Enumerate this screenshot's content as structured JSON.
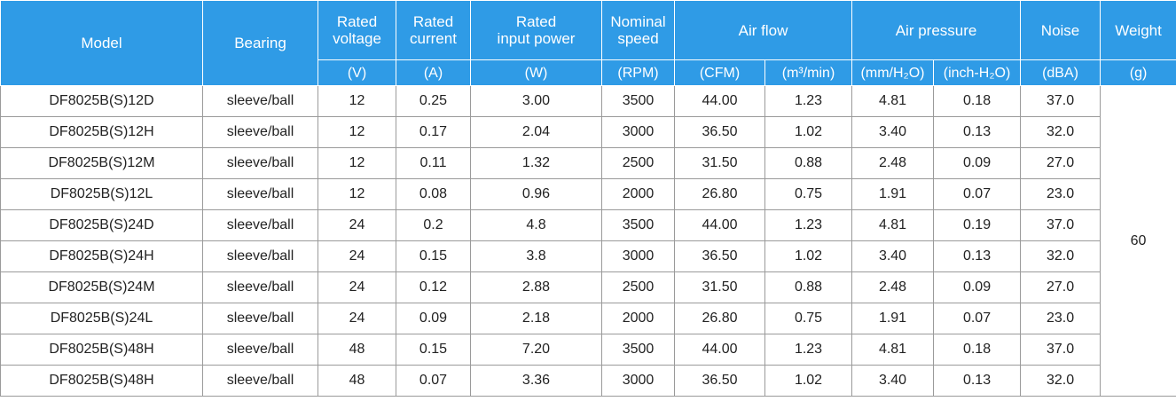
{
  "header": {
    "columns": [
      {
        "label": "Model",
        "rowspan": 2,
        "colspan": 1
      },
      {
        "label": "Bearing",
        "rowspan": 2,
        "colspan": 1
      },
      {
        "label": "Rated\nvoltage",
        "rowspan": 1,
        "colspan": 1
      },
      {
        "label": "Rated\ncurrent",
        "rowspan": 1,
        "colspan": 1
      },
      {
        "label": "Rated\ninput power",
        "rowspan": 1,
        "colspan": 1
      },
      {
        "label": "Nominal\nspeed",
        "rowspan": 1,
        "colspan": 1
      },
      {
        "label": "Air flow",
        "rowspan": 1,
        "colspan": 2
      },
      {
        "label": "Air pressure",
        "rowspan": 1,
        "colspan": 2
      },
      {
        "label": "Noise",
        "rowspan": 1,
        "colspan": 1
      },
      {
        "label": "Weight",
        "rowspan": 1,
        "colspan": 1
      }
    ],
    "units": [
      "(V)",
      "(A)",
      "(W)",
      "(RPM)",
      "(CFM)",
      "(m³/min)",
      "(mm/H₂O)",
      "(inch-H₂O)",
      "(dBA)",
      "(g)"
    ]
  },
  "table": {
    "rows": [
      [
        "DF8025B(S)12D",
        "sleeve/ball",
        "12",
        "0.25",
        "3.00",
        "3500",
        "44.00",
        "1.23",
        "4.81",
        "0.18",
        "37.0"
      ],
      [
        "DF8025B(S)12H",
        "sleeve/ball",
        "12",
        "0.17",
        "2.04",
        "3000",
        "36.50",
        "1.02",
        "3.40",
        "0.13",
        "32.0"
      ],
      [
        "DF8025B(S)12M",
        "sleeve/ball",
        "12",
        "0.11",
        "1.32",
        "2500",
        "31.50",
        "0.88",
        "2.48",
        "0.09",
        "27.0"
      ],
      [
        "DF8025B(S)12L",
        "sleeve/ball",
        "12",
        "0.08",
        "0.96",
        "2000",
        "26.80",
        "0.75",
        "1.91",
        "0.07",
        "23.0"
      ],
      [
        "DF8025B(S)24D",
        "sleeve/ball",
        "24",
        "0.2",
        "4.8",
        "3500",
        "44.00",
        "1.23",
        "4.81",
        "0.19",
        "37.0"
      ],
      [
        "DF8025B(S)24H",
        "sleeve/ball",
        "24",
        "0.15",
        "3.8",
        "3000",
        "36.50",
        "1.02",
        "3.40",
        "0.13",
        "32.0"
      ],
      [
        "DF8025B(S)24M",
        "sleeve/ball",
        "24",
        "0.12",
        "2.88",
        "2500",
        "31.50",
        "0.88",
        "2.48",
        "0.09",
        "27.0"
      ],
      [
        "DF8025B(S)24L",
        "sleeve/ball",
        "24",
        "0.09",
        "2.18",
        "2000",
        "26.80",
        "0.75",
        "1.91",
        "0.07",
        "23.0"
      ],
      [
        "DF8025B(S)48H",
        "sleeve/ball",
        "48",
        "0.15",
        "7.20",
        "3500",
        "44.00",
        "1.23",
        "4.81",
        "0.18",
        "37.0"
      ],
      [
        "DF8025B(S)48H",
        "sleeve/ball",
        "48",
        "0.07",
        "3.36",
        "3000",
        "36.50",
        "1.02",
        "3.40",
        "0.13",
        "32.0"
      ]
    ],
    "weight": "60"
  }
}
